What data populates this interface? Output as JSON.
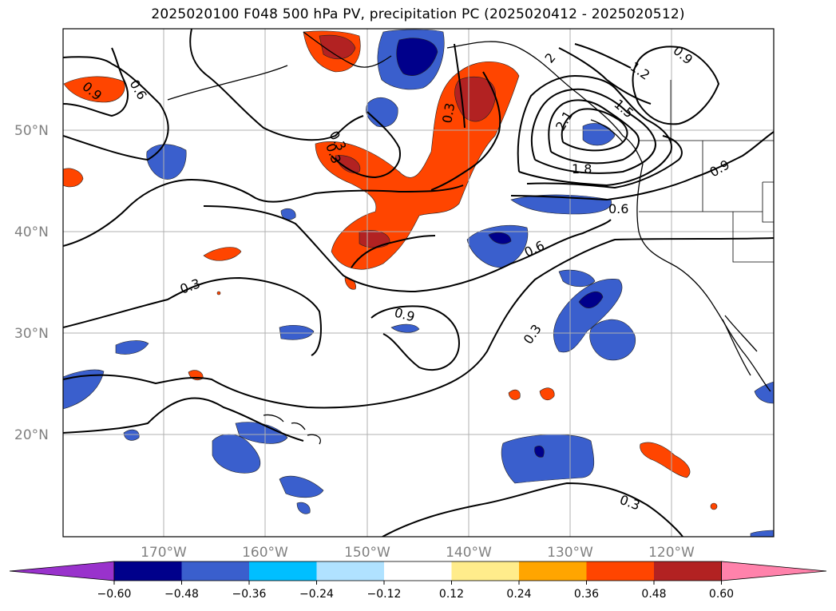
{
  "title": "2025020100 F048 500 hPa PV, precipitation PC (2025020412 - 2025020512)",
  "lat_labels": [
    "50°N",
    "40°N",
    "30°N",
    "20°N"
  ],
  "lon_labels": [
    "170°W",
    "160°W",
    "150°W",
    "140°W",
    "130°W",
    "120°W"
  ],
  "contour_labels": [
    "0.6",
    "0.9",
    "0.3",
    "0.3",
    "0.3",
    "0.3",
    "0.6",
    "0.6",
    "0.9",
    "0.3",
    "0.3",
    "0.9",
    "0.6",
    "2",
    "1.2",
    "1.5",
    "2.1",
    "1.8",
    "0.9",
    "0.3"
  ],
  "colorbar": {
    "ticks": [
      "−0.60",
      "−0.48",
      "−0.36",
      "−0.24",
      "−0.12",
      "0.12",
      "0.24",
      "0.36",
      "0.48",
      "0.60"
    ],
    "colors": [
      "#9932cc",
      "#00008b",
      "#3a5fcd",
      "#00bfff",
      "#b0e2ff",
      "#ffffff",
      "#ffec8b",
      "#ffa500",
      "#ff4500",
      "#b22222",
      "#ff82ab"
    ]
  },
  "chart_data": {
    "type": "heatmap",
    "title": "2025020100 F048 500 hPa PV, precipitation PC (2025020412 - 2025020512)",
    "xlabel": "",
    "ylabel": "",
    "lon_range": [
      -180,
      -110
    ],
    "lat_range": [
      10,
      60
    ],
    "grid": true,
    "contour_field": "500 hPa PV",
    "contour_levels": [
      0.3,
      0.6,
      0.9,
      1.2,
      1.5,
      1.8,
      2.1
    ],
    "filled_field": "precipitation PC",
    "colorbar_levels": [
      -0.6,
      -0.48,
      -0.36,
      -0.24,
      -0.12,
      0.12,
      0.24,
      0.36,
      0.48,
      0.6
    ],
    "colorbar_extend": "both",
    "pv_maximum_center": {
      "lon": -126,
      "lat": 49
    }
  }
}
